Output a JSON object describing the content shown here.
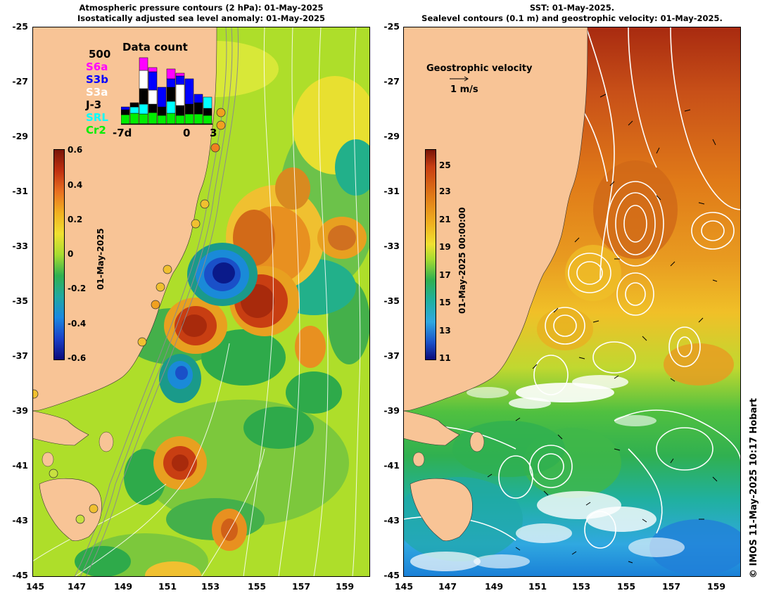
{
  "left_panel": {
    "title_line1": "Atmospheric pressure contours (2 hPa): 01-May-2025",
    "title_line2": "Isostatically adjusted sea level anomaly: 01-May-2025",
    "colorbar": {
      "ticks": [
        "0.6",
        "0.4",
        "0.2",
        "0",
        "-0.2",
        "-0.4",
        "-0.6"
      ],
      "label": "01-May-2025",
      "min": -0.6,
      "max": 0.6
    },
    "data_count": {
      "title": "Data count",
      "max_label": "500",
      "legend": [
        {
          "name": "S6a",
          "color": "#ff00ff"
        },
        {
          "name": "S3b",
          "color": "#0000ff"
        },
        {
          "name": "S3a",
          "color": "#ffffff"
        },
        {
          "name": "J-3",
          "color": "#000000"
        },
        {
          "name": "SRL",
          "color": "#00ffff"
        },
        {
          "name": "Cr2",
          "color": "#00ee00"
        }
      ],
      "x_ticks": [
        "-7d",
        "0",
        "3"
      ]
    }
  },
  "right_panel": {
    "title_line1": "SST: 01-May-2025.",
    "title_line2": "Sealevel contours (0.1 m) and geostrophic velocity: 01-May-2025.",
    "velocity_key_title": "Geostrophic velocity",
    "velocity_key_label": "1 m/s",
    "colorbar": {
      "ticks": [
        "25",
        "23",
        "21",
        "19",
        "17",
        "15",
        "13",
        "11"
      ],
      "label": "01-May-2025 00:00:00",
      "min": 11,
      "max": 26
    }
  },
  "y_axis_ticks": [
    "-25",
    "-27",
    "-29",
    "-31",
    "-33",
    "-35",
    "-37",
    "-39",
    "-41",
    "-43",
    "-45"
  ],
  "x_axis_ticks": [
    "145",
    "147",
    "149",
    "151",
    "153",
    "155",
    "157",
    "159"
  ],
  "credit": "© IMOS 11-May-2025 10:17 Hobart",
  "colors": {
    "land": "#f8c496",
    "contour_white": "#ffffff",
    "bathymetry": "#8c8c8c"
  }
}
